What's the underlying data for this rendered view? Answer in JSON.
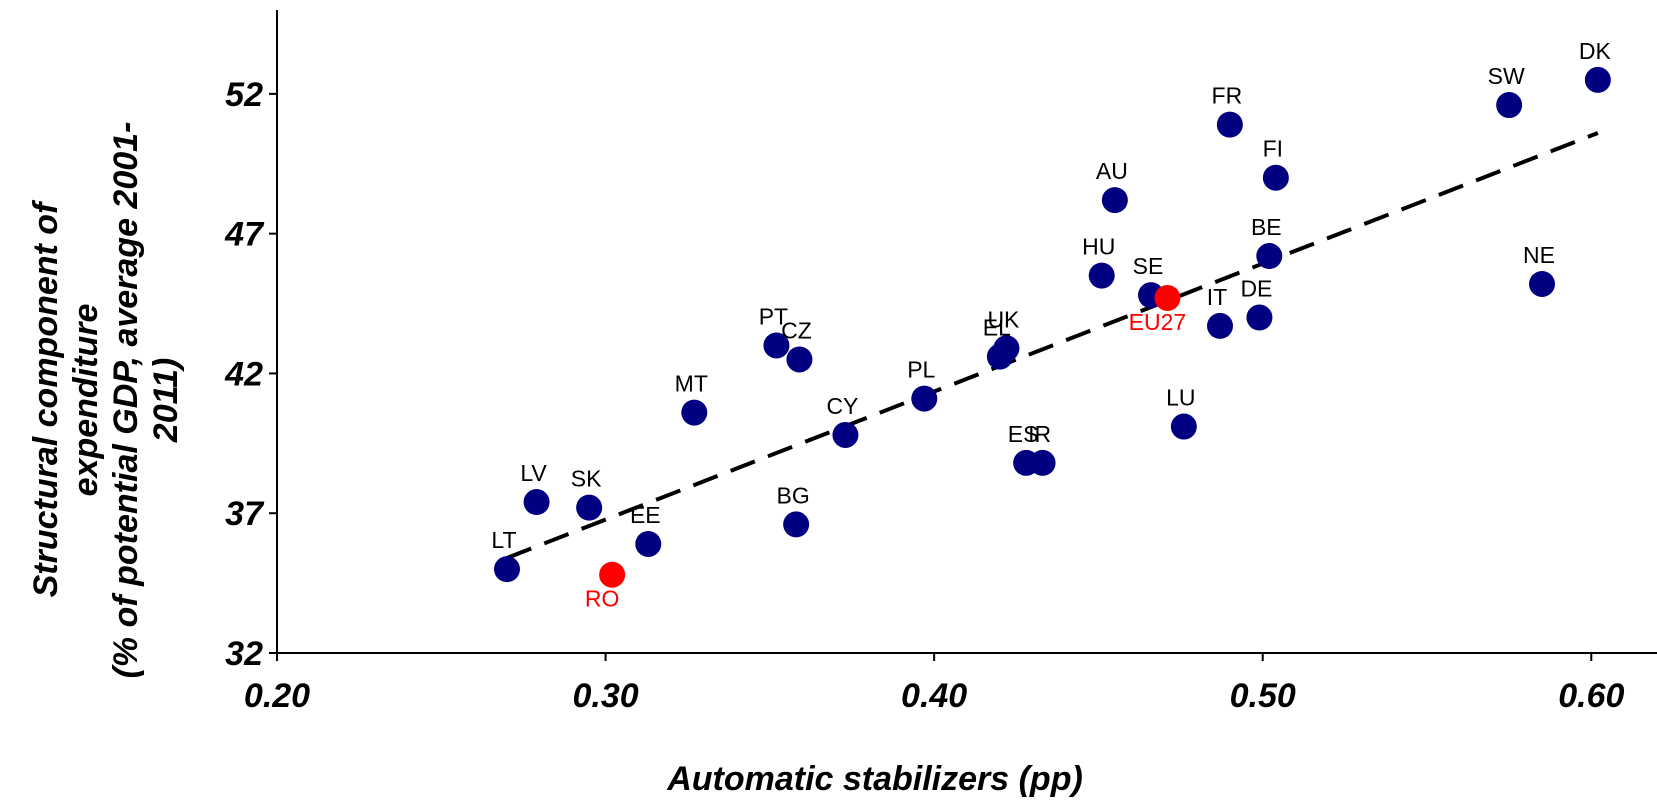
{
  "chart_data": {
    "type": "scatter",
    "xlabel": "Automatic stabilizers (pp)",
    "ylabel_lines": [
      "Structural component of",
      "expenditure",
      "(% of potential GDP, average 2001-",
      "2011)"
    ],
    "xlim": [
      0.2,
      0.62
    ],
    "ylim": [
      32,
      55
    ],
    "x_ticks": [
      0.2,
      0.3,
      0.4,
      0.5,
      0.6
    ],
    "x_tick_labels": [
      "0.20",
      "0.30",
      "0.40",
      "0.50",
      "0.60"
    ],
    "y_ticks": [
      32,
      37,
      42,
      47,
      52
    ],
    "y_tick_labels": [
      "32",
      "37",
      "42",
      "47",
      "52"
    ],
    "colors": {
      "default": "#000080",
      "highlight": "#ff0000",
      "highlight_label": "#ff0000",
      "label": "#000000"
    },
    "trendline": {
      "style": "dashed",
      "x": [
        0.27,
        0.602
      ],
      "y": [
        35.4,
        50.6
      ]
    },
    "points": [
      {
        "label": "LT",
        "x": 0.27,
        "y": 35.0,
        "highlight": false
      },
      {
        "label": "LV",
        "x": 0.279,
        "y": 37.4,
        "highlight": false
      },
      {
        "label": "SK",
        "x": 0.295,
        "y": 37.2,
        "highlight": false
      },
      {
        "label": "RO",
        "x": 0.302,
        "y": 34.8,
        "highlight": true
      },
      {
        "label": "EE",
        "x": 0.313,
        "y": 35.9,
        "highlight": false
      },
      {
        "label": "MT",
        "x": 0.327,
        "y": 40.6,
        "highlight": false
      },
      {
        "label": "PT",
        "x": 0.352,
        "y": 43.0,
        "highlight": false
      },
      {
        "label": "CZ",
        "x": 0.359,
        "y": 42.5,
        "highlight": false
      },
      {
        "label": "BG",
        "x": 0.358,
        "y": 36.6,
        "highlight": false
      },
      {
        "label": "CY",
        "x": 0.373,
        "y": 39.8,
        "highlight": false
      },
      {
        "label": "PL",
        "x": 0.397,
        "y": 41.1,
        "highlight": false
      },
      {
        "label": "EL",
        "x": 0.42,
        "y": 42.6,
        "highlight": false
      },
      {
        "label": "UK",
        "x": 0.422,
        "y": 42.9,
        "highlight": false
      },
      {
        "label": "ES",
        "x": 0.428,
        "y": 38.8,
        "highlight": false
      },
      {
        "label": "IR",
        "x": 0.433,
        "y": 38.8,
        "highlight": false
      },
      {
        "label": "HU",
        "x": 0.451,
        "y": 45.5,
        "highlight": false
      },
      {
        "label": "AU",
        "x": 0.455,
        "y": 48.2,
        "highlight": false
      },
      {
        "label": "SE",
        "x": 0.466,
        "y": 44.8,
        "highlight": false
      },
      {
        "label": "EU27",
        "x": 0.471,
        "y": 44.7,
        "highlight": true
      },
      {
        "label": "LU",
        "x": 0.476,
        "y": 40.1,
        "highlight": false
      },
      {
        "label": "IT",
        "x": 0.487,
        "y": 43.7,
        "highlight": false
      },
      {
        "label": "FR",
        "x": 0.49,
        "y": 50.9,
        "highlight": false
      },
      {
        "label": "DE",
        "x": 0.499,
        "y": 44.0,
        "highlight": false
      },
      {
        "label": "BE",
        "x": 0.502,
        "y": 46.2,
        "highlight": false
      },
      {
        "label": "FI",
        "x": 0.504,
        "y": 49.0,
        "highlight": false
      },
      {
        "label": "SW",
        "x": 0.575,
        "y": 51.6,
        "highlight": false
      },
      {
        "label": "NE",
        "x": 0.585,
        "y": 45.2,
        "highlight": false
      },
      {
        "label": "DK",
        "x": 0.602,
        "y": 52.5,
        "highlight": false
      }
    ]
  }
}
